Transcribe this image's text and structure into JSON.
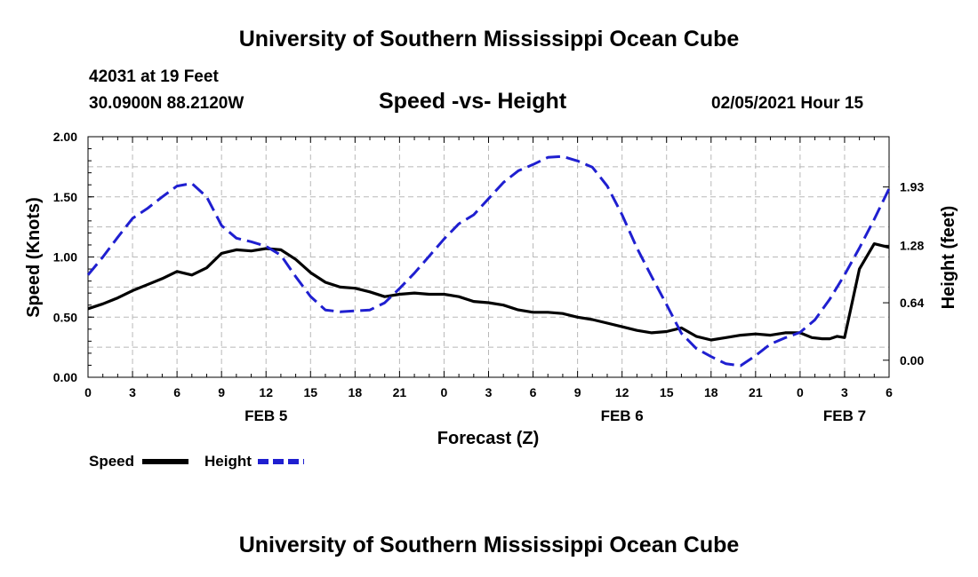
{
  "header": {
    "title_top": "University of Southern Mississippi Ocean Cube",
    "station_line": "42031 at 19 Feet",
    "coords_line": "30.0900N 88.2120W",
    "date_line": "02/05/2021 Hour 15",
    "title_bottom": "University of Southern Mississippi Ocean Cube"
  },
  "legend": {
    "speed_label": "Speed",
    "height_label": "Height"
  },
  "colors": {
    "speed": "#000000",
    "height": "#1f1fd0",
    "grid": "#b8b8b8"
  },
  "chart_data": {
    "type": "line",
    "title": "Speed -vs- Height",
    "xlabel": "Forecast (Z)",
    "ylabel_left": "Speed (Knots)",
    "ylabel_right": "Height (feet)",
    "x_unit": "hours since FEB 5 00Z",
    "xlim": [
      0,
      54
    ],
    "ylim_left": [
      0,
      2
    ],
    "ylim_right": [
      -0.19,
      2.49
    ],
    "x_ticks": [
      0,
      3,
      6,
      9,
      12,
      15,
      18,
      21,
      24,
      27,
      30,
      33,
      36,
      39,
      42,
      45,
      48,
      51,
      54
    ],
    "x_tick_labels": [
      "0",
      "3",
      "6",
      "9",
      "12",
      "15",
      "18",
      "21",
      "0",
      "3",
      "6",
      "9",
      "12",
      "15",
      "18",
      "21",
      "0",
      "3",
      "6"
    ],
    "day_labels": [
      {
        "x": 12,
        "label": "FEB 5"
      },
      {
        "x": 36,
        "label": "FEB 6"
      },
      {
        "x": 51,
        "label": "FEB 7"
      }
    ],
    "y_left_ticks": [
      0,
      0.5,
      1,
      1.5,
      2
    ],
    "y_left_tick_labels": [
      "0.00",
      "0.50",
      "1.00",
      "1.50",
      "2.00"
    ],
    "y_right_ticks": [
      0,
      0.64,
      1.28,
      1.93
    ],
    "y_right_tick_labels": [
      "0.00",
      "0.64",
      "1.28",
      "1.93"
    ],
    "grid": true,
    "legend_position": "bottom-left",
    "series": [
      {
        "name": "Speed",
        "axis": "left",
        "style": "solid",
        "x": [
          0,
          1,
          2,
          3,
          4,
          5,
          6,
          7,
          8,
          9,
          10,
          11,
          12,
          13,
          14,
          15,
          16,
          17,
          18,
          19,
          20,
          21,
          22,
          23,
          24,
          25,
          26,
          27,
          28,
          29,
          30,
          31,
          32,
          33,
          34,
          35,
          36,
          37,
          38,
          39,
          40,
          41,
          42,
          43,
          44,
          45,
          46,
          47,
          48,
          48.8,
          49.5,
          50,
          50.5,
          51,
          52,
          53,
          54
        ],
        "values": [
          0.57,
          0.61,
          0.66,
          0.72,
          0.77,
          0.82,
          0.88,
          0.85,
          0.91,
          1.03,
          1.06,
          1.05,
          1.07,
          1.06,
          0.98,
          0.87,
          0.79,
          0.75,
          0.74,
          0.71,
          0.67,
          0.69,
          0.7,
          0.69,
          0.69,
          0.67,
          0.63,
          0.62,
          0.6,
          0.56,
          0.54,
          0.54,
          0.53,
          0.5,
          0.48,
          0.45,
          0.42,
          0.39,
          0.37,
          0.38,
          0.41,
          0.34,
          0.31,
          0.33,
          0.35,
          0.36,
          0.35,
          0.37,
          0.37,
          0.33,
          0.32,
          0.32,
          0.34,
          0.33,
          0.9,
          1.11,
          1.08
        ]
      },
      {
        "name": "Height",
        "axis": "right",
        "style": "dashed",
        "x": [
          0,
          1,
          2,
          3,
          4,
          5,
          6,
          7,
          8,
          9,
          10,
          11,
          12,
          13,
          14,
          15,
          16,
          17,
          18,
          19,
          20,
          21,
          22,
          23,
          24,
          25,
          26,
          27,
          28,
          29,
          30,
          31,
          32,
          33,
          34,
          35,
          36,
          37,
          38,
          39,
          40,
          41,
          42,
          43,
          44,
          45,
          46,
          47,
          48,
          49,
          50,
          51,
          52,
          53,
          54
        ],
        "values": [
          0.95,
          1.15,
          1.37,
          1.58,
          1.69,
          1.82,
          1.94,
          1.97,
          1.82,
          1.5,
          1.36,
          1.32,
          1.27,
          1.17,
          0.93,
          0.71,
          0.56,
          0.54,
          0.55,
          0.56,
          0.64,
          0.8,
          0.97,
          1.16,
          1.35,
          1.52,
          1.62,
          1.8,
          1.98,
          2.11,
          2.18,
          2.26,
          2.27,
          2.22,
          2.15,
          1.94,
          1.62,
          1.25,
          0.93,
          0.62,
          0.3,
          0.13,
          0.04,
          -0.04,
          -0.06,
          0.05,
          0.18,
          0.25,
          0.31,
          0.45,
          0.68,
          0.95,
          1.25,
          1.57,
          1.91
        ]
      }
    ]
  }
}
